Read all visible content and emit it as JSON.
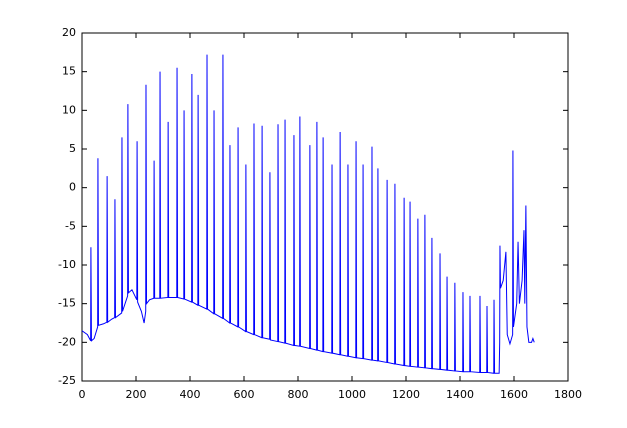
{
  "chart_data": {
    "type": "line",
    "x": [
      0,
      20,
      32,
      33,
      35,
      45,
      58,
      59,
      61,
      80,
      92,
      93,
      95,
      110,
      121,
      122,
      124,
      147,
      148,
      150,
      169,
      170,
      172,
      185,
      203,
      204,
      206,
      220,
      230,
      236,
      237,
      239,
      250,
      266,
      267,
      269,
      288,
      289,
      291,
      318,
      319,
      321,
      351,
      352,
      354,
      377,
      378,
      380,
      406,
      407,
      409,
      429,
      430,
      432,
      462,
      463,
      465,
      488,
      489,
      491,
      521,
      522,
      524,
      547,
      548,
      550,
      577,
      578,
      580,
      606,
      607,
      609,
      636,
      637,
      639,
      666,
      667,
      669,
      695,
      696,
      698,
      725,
      726,
      728,
      751,
      752,
      754,
      784,
      785,
      787,
      806,
      807,
      809,
      843,
      844,
      846,
      869,
      870,
      872,
      892,
      893,
      895,
      925,
      926,
      928,
      955,
      956,
      958,
      984,
      985,
      987,
      1014,
      1015,
      1017,
      1040,
      1041,
      1043,
      1073,
      1074,
      1076,
      1095,
      1096,
      1098,
      1129,
      1130,
      1132,
      1158,
      1159,
      1161,
      1192,
      1193,
      1195,
      1214,
      1215,
      1217,
      1243,
      1244,
      1246,
      1269,
      1270,
      1272,
      1295,
      1296,
      1298,
      1325,
      1326,
      1328,
      1351,
      1352,
      1354,
      1380,
      1381,
      1383,
      1410,
      1411,
      1413,
      1436,
      1437,
      1439,
      1473,
      1474,
      1476,
      1499,
      1500,
      1502,
      1525,
      1526,
      1528,
      1545,
      1547,
      1548,
      1550,
      1560,
      1570,
      1575,
      1585,
      1595,
      1596,
      1598,
      1610,
      1615,
      1620,
      1630,
      1637,
      1640,
      1644,
      1648,
      1655,
      1665,
      1670,
      1675
    ],
    "series": [
      {
        "color": "#0000ff",
        "values": [
          -18.5,
          -19,
          -19.8,
          -7.7,
          -19.8,
          -19.5,
          -18,
          3.8,
          -17.8,
          -17.6,
          -17.4,
          1.5,
          -17.4,
          -17,
          -16.8,
          -1.5,
          -16.8,
          -16.2,
          6.5,
          -16,
          -14,
          10.8,
          -13.6,
          -13.2,
          -14.5,
          6,
          -14.8,
          -16,
          -17.5,
          -16,
          13.3,
          -15,
          -14.5,
          -14.3,
          3.5,
          -14.3,
          -14.3,
          15,
          -14.3,
          -14.2,
          8.5,
          -14.2,
          -14.2,
          15.5,
          -14.2,
          -14.4,
          10,
          -14.4,
          -14.8,
          14.7,
          -14.8,
          -15.2,
          12,
          -15.2,
          -15.7,
          17.2,
          -15.7,
          -16.3,
          10,
          -16.3,
          -16.9,
          17.2,
          -16.9,
          -17.5,
          5.5,
          -17.5,
          -18,
          7.8,
          -18,
          -18.6,
          3,
          -18.6,
          -19,
          8.3,
          -19,
          -19.4,
          8,
          -19.4,
          -19.6,
          2,
          -19.7,
          -19.9,
          8.2,
          -19.9,
          -20.1,
          8.8,
          -20.1,
          -20.4,
          6.8,
          -20.4,
          -20.5,
          9.2,
          -20.5,
          -20.8,
          5.5,
          -20.8,
          -21,
          8.5,
          -21,
          -21.2,
          6.5,
          -21.2,
          -21.4,
          3,
          -21.4,
          -21.6,
          7.2,
          -21.6,
          -21.8,
          3,
          -21.8,
          -22,
          6,
          -22,
          -22.1,
          3,
          -22.1,
          -22.3,
          5.3,
          -22.3,
          -22.4,
          2.5,
          -22.4,
          -22.6,
          1,
          -22.6,
          -22.8,
          0.5,
          -22.8,
          -23,
          -1.3,
          -23,
          -23.1,
          -1.8,
          -23.1,
          -23.2,
          -4,
          -23.2,
          -23.3,
          -3.5,
          -23.3,
          -23.4,
          -6.5,
          -23.4,
          -23.5,
          -8.5,
          -23.5,
          -23.6,
          -11.5,
          -23.6,
          -23.7,
          -12.3,
          -23.7,
          -23.8,
          -13.5,
          -23.8,
          -23.8,
          -14,
          -23.8,
          -23.9,
          -14,
          -23.9,
          -23.9,
          -15.3,
          -23.9,
          -24,
          -14.5,
          -24,
          -24,
          -20,
          -7.5,
          -13,
          -12,
          -8.3,
          -19,
          -20.2,
          -19,
          4.8,
          -18,
          -15,
          -7,
          -15,
          -12,
          -5.5,
          -15,
          -2.3,
          -18,
          -20,
          -20,
          -19.5,
          -20
        ]
      }
    ],
    "xlim": [
      0,
      1800
    ],
    "xticks": [
      0,
      200,
      400,
      600,
      800,
      1000,
      1200,
      1400,
      1600,
      1800
    ],
    "ylim": [
      -25,
      20
    ],
    "yticks": [
      -25,
      -20,
      -15,
      -10,
      -5,
      0,
      5,
      10,
      15,
      20
    ]
  }
}
